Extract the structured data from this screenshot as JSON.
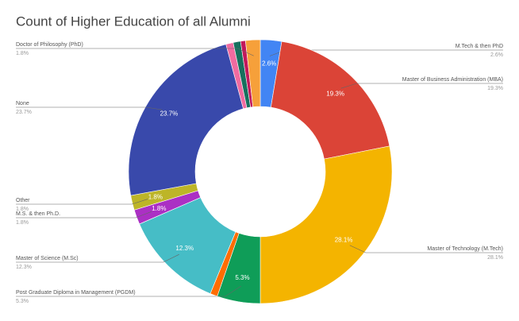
{
  "chart_data": {
    "type": "pie",
    "title": "Count of Higher Education of all Alumni",
    "categories": [
      "M.Tech & then PhD",
      "Master of Business Administration (MBA)",
      "Master of Technology (M.Tech)",
      "Post Graduate Diploma in Management (PGDM)",
      null,
      "Master of Science (M.Sc)",
      "M.S. & then Ph.D.",
      "Other",
      "None",
      null,
      null,
      null,
      "Doctor of Philosophy (PhD)"
    ],
    "values": [
      2.6,
      19.3,
      28.1,
      5.3,
      0.9,
      12.3,
      1.8,
      1.8,
      23.7,
      0.9,
      0.9,
      0.6,
      1.8
    ],
    "value_labels": [
      "2.6%",
      "19.3%",
      "28.1%",
      "5.3%",
      null,
      "12.3%",
      "1.8%",
      "1.8%",
      "23.7%",
      null,
      null,
      null,
      "1.8%"
    ],
    "colors": [
      "#4285f4",
      "#db4437",
      "#f4b400",
      "#0f9d58",
      "#ff6d01",
      "#46bdc6",
      "#ab30c4",
      "#bdb528",
      "#3949ab",
      "#f06ba0",
      "#17705e",
      "#c2185b",
      "#f6a03a"
    ]
  }
}
